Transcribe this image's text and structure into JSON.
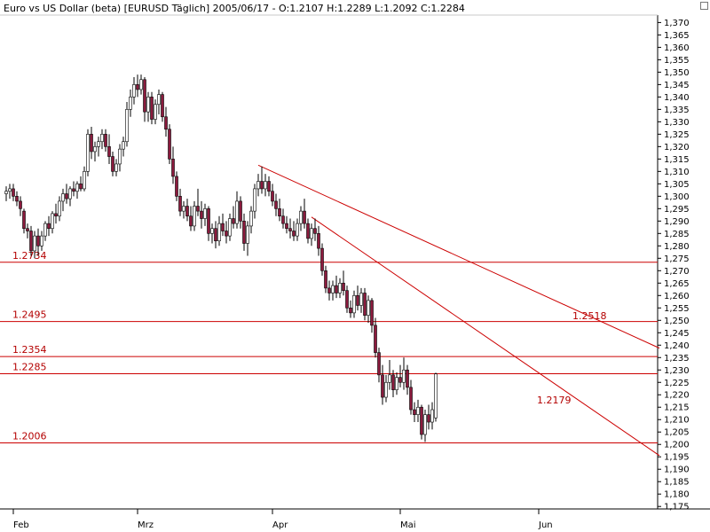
{
  "window": {
    "title": "Euro vs US Dollar (beta) [EURUSD  Täglich] 2005/06/17 - O:1.2107 H:1.2289 L:1.2092 C:1.2284"
  },
  "colors": {
    "bullish": "#ffffff",
    "bearish": "#8b1a3d",
    "candle_outline": "#000000",
    "levels": "#cc0000",
    "background": "#ffffff"
  },
  "chart_data": {
    "type": "candlestick",
    "title": "Euro vs US Dollar (beta) [EURUSD  Täglich] 2005/06/17 - O:1.2107 H:1.2289 L:1.2092 C:1.2284",
    "symbol": "EURUSD",
    "timeframe": "Täglich",
    "last_bar": {
      "date": "2005/06/17",
      "open": 1.2107,
      "high": 1.2289,
      "low": 1.2092,
      "close": 1.2284
    },
    "ylim": [
      1.174,
      1.373
    ],
    "y_axis_position": "right",
    "y_ticks": [
      1.175,
      1.18,
      1.185,
      1.19,
      1.195,
      1.2,
      1.205,
      1.21,
      1.215,
      1.22,
      1.225,
      1.23,
      1.235,
      1.24,
      1.245,
      1.25,
      1.255,
      1.26,
      1.265,
      1.27,
      1.275,
      1.28,
      1.285,
      1.29,
      1.295,
      1.3,
      1.305,
      1.31,
      1.315,
      1.32,
      1.325,
      1.33,
      1.335,
      1.34,
      1.345,
      1.35,
      1.355,
      1.36,
      1.365,
      1.37
    ],
    "y_tick_labels": [
      "1,175",
      "1,180",
      "1,185",
      "1,190",
      "1,195",
      "1,200",
      "1,205",
      "1,210",
      "1,215",
      "1,220",
      "1,225",
      "1,230",
      "1,235",
      "1,240",
      "1,245",
      "1,250",
      "1,255",
      "1,260",
      "1,265",
      "1,270",
      "1,275",
      "1,280",
      "1,285",
      "1,290",
      "1,295",
      "1,300",
      "1,305",
      "1,310",
      "1,315",
      "1,320",
      "1,325",
      "1,330",
      "1,335",
      "1,340",
      "1,345",
      "1,350",
      "1,355",
      "1,360",
      "1,365",
      "1,370"
    ],
    "x_ticks": [
      {
        "label": "Feb",
        "bar": 3
      },
      {
        "label": "Mrz",
        "bar": 38
      },
      {
        "label": "Apr",
        "bar": 76
      },
      {
        "label": "Mai",
        "bar": 112
      },
      {
        "label": "Jun",
        "bar": 151
      }
    ],
    "bars_total": 185,
    "candles": [
      {
        "bar": 1,
        "o": 1.301,
        "h": 1.304,
        "l": 1.298,
        "c": 1.302
      },
      {
        "bar": 2,
        "o": 1.302,
        "h": 1.305,
        "l": 1.299,
        "c": 1.303
      },
      {
        "bar": 3,
        "o": 1.303,
        "h": 1.305,
        "l": 1.298,
        "c": 1.3
      },
      {
        "bar": 4,
        "o": 1.3,
        "h": 1.302,
        "l": 1.296,
        "c": 1.298
      },
      {
        "bar": 5,
        "o": 1.298,
        "h": 1.3,
        "l": 1.292,
        "c": 1.295
      },
      {
        "bar": 6,
        "o": 1.294,
        "h": 1.295,
        "l": 1.285,
        "c": 1.287
      },
      {
        "bar": 7,
        "o": 1.287,
        "h": 1.289,
        "l": 1.283,
        "c": 1.286
      },
      {
        "bar": 8,
        "o": 1.286,
        "h": 1.288,
        "l": 1.276,
        "c": 1.278
      },
      {
        "bar": 9,
        "o": 1.278,
        "h": 1.286,
        "l": 1.275,
        "c": 1.284
      },
      {
        "bar": 10,
        "o": 1.284,
        "h": 1.287,
        "l": 1.276,
        "c": 1.28
      },
      {
        "bar": 11,
        "o": 1.28,
        "h": 1.286,
        "l": 1.278,
        "c": 1.284
      },
      {
        "bar": 12,
        "o": 1.284,
        "h": 1.29,
        "l": 1.282,
        "c": 1.289
      },
      {
        "bar": 13,
        "o": 1.289,
        "h": 1.292,
        "l": 1.284,
        "c": 1.287
      },
      {
        "bar": 14,
        "o": 1.287,
        "h": 1.294,
        "l": 1.285,
        "c": 1.293
      },
      {
        "bar": 15,
        "o": 1.293,
        "h": 1.297,
        "l": 1.289,
        "c": 1.292
      },
      {
        "bar": 16,
        "o": 1.292,
        "h": 1.3,
        "l": 1.29,
        "c": 1.298
      },
      {
        "bar": 17,
        "o": 1.298,
        "h": 1.303,
        "l": 1.294,
        "c": 1.301
      },
      {
        "bar": 18,
        "o": 1.301,
        "h": 1.305,
        "l": 1.297,
        "c": 1.299
      },
      {
        "bar": 19,
        "o": 1.299,
        "h": 1.304,
        "l": 1.296,
        "c": 1.303
      },
      {
        "bar": 20,
        "o": 1.303,
        "h": 1.306,
        "l": 1.3,
        "c": 1.302
      },
      {
        "bar": 21,
        "o": 1.302,
        "h": 1.306,
        "l": 1.299,
        "c": 1.305
      },
      {
        "bar": 22,
        "o": 1.305,
        "h": 1.308,
        "l": 1.302,
        "c": 1.303
      },
      {
        "bar": 23,
        "o": 1.303,
        "h": 1.312,
        "l": 1.302,
        "c": 1.31
      },
      {
        "bar": 24,
        "o": 1.31,
        "h": 1.327,
        "l": 1.308,
        "c": 1.325
      },
      {
        "bar": 25,
        "o": 1.325,
        "h": 1.328,
        "l": 1.315,
        "c": 1.318
      },
      {
        "bar": 26,
        "o": 1.318,
        "h": 1.322,
        "l": 1.314,
        "c": 1.32
      },
      {
        "bar": 27,
        "o": 1.32,
        "h": 1.324,
        "l": 1.316,
        "c": 1.322
      },
      {
        "bar": 28,
        "o": 1.322,
        "h": 1.327,
        "l": 1.319,
        "c": 1.325
      },
      {
        "bar": 29,
        "o": 1.325,
        "h": 1.327,
        "l": 1.318,
        "c": 1.32
      },
      {
        "bar": 30,
        "o": 1.32,
        "h": 1.325,
        "l": 1.313,
        "c": 1.316
      },
      {
        "bar": 31,
        "o": 1.316,
        "h": 1.318,
        "l": 1.308,
        "c": 1.31
      },
      {
        "bar": 32,
        "o": 1.31,
        "h": 1.315,
        "l": 1.308,
        "c": 1.313
      },
      {
        "bar": 33,
        "o": 1.313,
        "h": 1.321,
        "l": 1.31,
        "c": 1.319
      },
      {
        "bar": 34,
        "o": 1.319,
        "h": 1.324,
        "l": 1.316,
        "c": 1.322
      },
      {
        "bar": 35,
        "o": 1.322,
        "h": 1.338,
        "l": 1.32,
        "c": 1.335
      },
      {
        "bar": 36,
        "o": 1.335,
        "h": 1.343,
        "l": 1.332,
        "c": 1.34
      },
      {
        "bar": 37,
        "o": 1.34,
        "h": 1.348,
        "l": 1.337,
        "c": 1.345
      },
      {
        "bar": 38,
        "o": 1.345,
        "h": 1.349,
        "l": 1.34,
        "c": 1.343
      },
      {
        "bar": 39,
        "o": 1.343,
        "h": 1.349,
        "l": 1.341,
        "c": 1.347
      },
      {
        "bar": 40,
        "o": 1.347,
        "h": 1.348,
        "l": 1.33,
        "c": 1.334
      },
      {
        "bar": 41,
        "o": 1.334,
        "h": 1.342,
        "l": 1.33,
        "c": 1.34
      },
      {
        "bar": 42,
        "o": 1.34,
        "h": 1.342,
        "l": 1.329,
        "c": 1.331
      },
      {
        "bar": 43,
        "o": 1.331,
        "h": 1.339,
        "l": 1.329,
        "c": 1.337
      },
      {
        "bar": 44,
        "o": 1.337,
        "h": 1.343,
        "l": 1.333,
        "c": 1.341
      },
      {
        "bar": 45,
        "o": 1.341,
        "h": 1.342,
        "l": 1.33,
        "c": 1.332
      },
      {
        "bar": 46,
        "o": 1.332,
        "h": 1.336,
        "l": 1.324,
        "c": 1.327
      },
      {
        "bar": 47,
        "o": 1.327,
        "h": 1.329,
        "l": 1.313,
        "c": 1.315
      },
      {
        "bar": 48,
        "o": 1.315,
        "h": 1.32,
        "l": 1.305,
        "c": 1.308
      },
      {
        "bar": 49,
        "o": 1.308,
        "h": 1.31,
        "l": 1.298,
        "c": 1.3
      },
      {
        "bar": 50,
        "o": 1.3,
        "h": 1.303,
        "l": 1.292,
        "c": 1.294
      },
      {
        "bar": 51,
        "o": 1.294,
        "h": 1.298,
        "l": 1.291,
        "c": 1.296
      },
      {
        "bar": 52,
        "o": 1.296,
        "h": 1.299,
        "l": 1.29,
        "c": 1.292
      },
      {
        "bar": 53,
        "o": 1.292,
        "h": 1.296,
        "l": 1.286,
        "c": 1.288
      },
      {
        "bar": 54,
        "o": 1.288,
        "h": 1.298,
        "l": 1.286,
        "c": 1.296
      },
      {
        "bar": 55,
        "o": 1.296,
        "h": 1.303,
        "l": 1.292,
        "c": 1.294
      },
      {
        "bar": 56,
        "o": 1.294,
        "h": 1.298,
        "l": 1.287,
        "c": 1.291
      },
      {
        "bar": 57,
        "o": 1.291,
        "h": 1.297,
        "l": 1.288,
        "c": 1.295
      },
      {
        "bar": 58,
        "o": 1.295,
        "h": 1.296,
        "l": 1.282,
        "c": 1.285
      },
      {
        "bar": 59,
        "o": 1.285,
        "h": 1.289,
        "l": 1.281,
        "c": 1.287
      },
      {
        "bar": 60,
        "o": 1.287,
        "h": 1.29,
        "l": 1.279,
        "c": 1.282
      },
      {
        "bar": 61,
        "o": 1.282,
        "h": 1.292,
        "l": 1.28,
        "c": 1.289
      },
      {
        "bar": 62,
        "o": 1.289,
        "h": 1.293,
        "l": 1.284,
        "c": 1.286
      },
      {
        "bar": 63,
        "o": 1.286,
        "h": 1.29,
        "l": 1.281,
        "c": 1.284
      },
      {
        "bar": 64,
        "o": 1.284,
        "h": 1.293,
        "l": 1.282,
        "c": 1.291
      },
      {
        "bar": 65,
        "o": 1.291,
        "h": 1.296,
        "l": 1.287,
        "c": 1.289
      },
      {
        "bar": 66,
        "o": 1.289,
        "h": 1.302,
        "l": 1.287,
        "c": 1.298
      },
      {
        "bar": 67,
        "o": 1.298,
        "h": 1.3,
        "l": 1.287,
        "c": 1.29
      },
      {
        "bar": 68,
        "o": 1.29,
        "h": 1.293,
        "l": 1.278,
        "c": 1.281
      },
      {
        "bar": 69,
        "o": 1.281,
        "h": 1.29,
        "l": 1.276,
        "c": 1.288
      },
      {
        "bar": 70,
        "o": 1.288,
        "h": 1.296,
        "l": 1.285,
        "c": 1.294
      },
      {
        "bar": 71,
        "o": 1.294,
        "h": 1.305,
        "l": 1.291,
        "c": 1.303
      },
      {
        "bar": 72,
        "o": 1.303,
        "h": 1.309,
        "l": 1.3,
        "c": 1.306
      },
      {
        "bar": 73,
        "o": 1.306,
        "h": 1.312,
        "l": 1.301,
        "c": 1.303
      },
      {
        "bar": 74,
        "o": 1.303,
        "h": 1.309,
        "l": 1.3,
        "c": 1.306
      },
      {
        "bar": 75,
        "o": 1.306,
        "h": 1.308,
        "l": 1.3,
        "c": 1.302
      },
      {
        "bar": 76,
        "o": 1.302,
        "h": 1.305,
        "l": 1.296,
        "c": 1.298
      },
      {
        "bar": 77,
        "o": 1.298,
        "h": 1.301,
        "l": 1.292,
        "c": 1.295
      },
      {
        "bar": 78,
        "o": 1.295,
        "h": 1.299,
        "l": 1.29,
        "c": 1.292
      },
      {
        "bar": 79,
        "o": 1.292,
        "h": 1.295,
        "l": 1.287,
        "c": 1.289
      },
      {
        "bar": 80,
        "o": 1.289,
        "h": 1.292,
        "l": 1.285,
        "c": 1.287
      },
      {
        "bar": 81,
        "o": 1.287,
        "h": 1.291,
        "l": 1.283,
        "c": 1.286
      },
      {
        "bar": 82,
        "o": 1.286,
        "h": 1.29,
        "l": 1.282,
        "c": 1.284
      },
      {
        "bar": 83,
        "o": 1.284,
        "h": 1.291,
        "l": 1.282,
        "c": 1.289
      },
      {
        "bar": 84,
        "o": 1.289,
        "h": 1.296,
        "l": 1.286,
        "c": 1.294
      },
      {
        "bar": 85,
        "o": 1.294,
        "h": 1.299,
        "l": 1.287,
        "c": 1.289
      },
      {
        "bar": 86,
        "o": 1.289,
        "h": 1.291,
        "l": 1.281,
        "c": 1.283
      },
      {
        "bar": 87,
        "o": 1.283,
        "h": 1.289,
        "l": 1.28,
        "c": 1.287
      },
      {
        "bar": 88,
        "o": 1.287,
        "h": 1.291,
        "l": 1.282,
        "c": 1.285
      },
      {
        "bar": 89,
        "o": 1.285,
        "h": 1.288,
        "l": 1.276,
        "c": 1.279
      },
      {
        "bar": 90,
        "o": 1.279,
        "h": 1.281,
        "l": 1.268,
        "c": 1.27
      },
      {
        "bar": 91,
        "o": 1.27,
        "h": 1.272,
        "l": 1.261,
        "c": 1.263
      },
      {
        "bar": 92,
        "o": 1.263,
        "h": 1.266,
        "l": 1.258,
        "c": 1.261
      },
      {
        "bar": 93,
        "o": 1.261,
        "h": 1.266,
        "l": 1.258,
        "c": 1.264
      },
      {
        "bar": 94,
        "o": 1.264,
        "h": 1.268,
        "l": 1.259,
        "c": 1.261
      },
      {
        "bar": 95,
        "o": 1.261,
        "h": 1.267,
        "l": 1.259,
        "c": 1.265
      },
      {
        "bar": 96,
        "o": 1.265,
        "h": 1.27,
        "l": 1.26,
        "c": 1.262
      },
      {
        "bar": 97,
        "o": 1.262,
        "h": 1.264,
        "l": 1.253,
        "c": 1.255
      },
      {
        "bar": 98,
        "o": 1.255,
        "h": 1.258,
        "l": 1.251,
        "c": 1.253
      },
      {
        "bar": 99,
        "o": 1.253,
        "h": 1.262,
        "l": 1.251,
        "c": 1.26
      },
      {
        "bar": 100,
        "o": 1.26,
        "h": 1.264,
        "l": 1.254,
        "c": 1.256
      },
      {
        "bar": 101,
        "o": 1.256,
        "h": 1.263,
        "l": 1.253,
        "c": 1.261
      },
      {
        "bar": 102,
        "o": 1.261,
        "h": 1.263,
        "l": 1.25,
        "c": 1.252
      },
      {
        "bar": 103,
        "o": 1.252,
        "h": 1.26,
        "l": 1.249,
        "c": 1.258
      },
      {
        "bar": 104,
        "o": 1.258,
        "h": 1.259,
        "l": 1.245,
        "c": 1.248
      },
      {
        "bar": 105,
        "o": 1.248,
        "h": 1.251,
        "l": 1.235,
        "c": 1.237
      },
      {
        "bar": 106,
        "o": 1.237,
        "h": 1.239,
        "l": 1.225,
        "c": 1.228
      },
      {
        "bar": 107,
        "o": 1.228,
        "h": 1.232,
        "l": 1.216,
        "c": 1.219
      },
      {
        "bar": 108,
        "o": 1.219,
        "h": 1.228,
        "l": 1.217,
        "c": 1.225
      },
      {
        "bar": 109,
        "o": 1.225,
        "h": 1.234,
        "l": 1.222,
        "c": 1.228
      },
      {
        "bar": 110,
        "o": 1.228,
        "h": 1.23,
        "l": 1.219,
        "c": 1.222
      },
      {
        "bar": 111,
        "o": 1.222,
        "h": 1.229,
        "l": 1.22,
        "c": 1.227
      },
      {
        "bar": 112,
        "o": 1.227,
        "h": 1.232,
        "l": 1.223,
        "c": 1.225
      },
      {
        "bar": 113,
        "o": 1.225,
        "h": 1.235,
        "l": 1.222,
        "c": 1.23
      },
      {
        "bar": 114,
        "o": 1.23,
        "h": 1.232,
        "l": 1.22,
        "c": 1.223
      },
      {
        "bar": 115,
        "o": 1.223,
        "h": 1.226,
        "l": 1.212,
        "c": 1.214
      },
      {
        "bar": 116,
        "o": 1.214,
        "h": 1.217,
        "l": 1.209,
        "c": 1.212
      },
      {
        "bar": 117,
        "o": 1.212,
        "h": 1.218,
        "l": 1.209,
        "c": 1.215
      },
      {
        "bar": 118,
        "o": 1.215,
        "h": 1.216,
        "l": 1.202,
        "c": 1.204
      },
      {
        "bar": 119,
        "o": 1.204,
        "h": 1.214,
        "l": 1.201,
        "c": 1.212
      },
      {
        "bar": 120,
        "o": 1.212,
        "h": 1.216,
        "l": 1.206,
        "c": 1.209
      },
      {
        "bar": 121,
        "o": 1.209,
        "h": 1.217,
        "l": 1.206,
        "c": 1.214
      },
      {
        "bar": 122,
        "o": 1.2107,
        "h": 1.2289,
        "l": 1.2092,
        "c": 1.2284
      }
    ],
    "horizontal_levels": [
      {
        "value": 1.2734,
        "label": "1.2734"
      },
      {
        "value": 1.2495,
        "label": "1.2495"
      },
      {
        "value": 1.2354,
        "label": "1.2354"
      },
      {
        "value": 1.2285,
        "label": "1.2285"
      },
      {
        "value": 1.2006,
        "label": "1.2006"
      }
    ],
    "trendlines": [
      {
        "from": {
          "bar": 72,
          "value": 1.3125
        },
        "to": {
          "bar": 185,
          "value": 1.2388
        },
        "label": "1.2518",
        "label_at": {
          "bar": 160,
          "value": 1.2518
        }
      },
      {
        "from": {
          "bar": 87,
          "value": 1.2916
        },
        "to": {
          "bar": 185,
          "value": 1.1955
        },
        "label": "1.2179",
        "label_at": {
          "bar": 150,
          "value": 1.2179
        }
      }
    ]
  }
}
